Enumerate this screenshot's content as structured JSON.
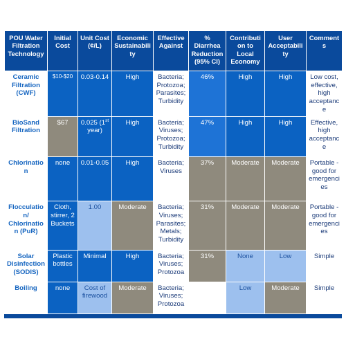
{
  "table": {
    "headers": [
      "POU Water Filtration Technology",
      "Initial Cost",
      "Unit Cost (¢/L)",
      "Economic Sustainability",
      "Effective Against",
      "% Diarrhea Reduction (95% CI)",
      "Contribution to Local Economy",
      "User Acceptability",
      "Comments"
    ],
    "rows": [
      {
        "technology": "Ceramic Filtration (CWF)",
        "initial_cost": "$10-$20",
        "unit_cost": "0.03-0.14",
        "unit_cost_sup": "",
        "unit_cost_tail": "",
        "economic_sustainability": "High",
        "effective_against": "Bacteria; Protozoa; Parasites; Turbidity",
        "diarrhea_reduction": "46%",
        "local_economy": "High",
        "user_acceptability": "High",
        "comments": "Low cost, effective, high acceptance"
      },
      {
        "technology": "BioSand Filtration",
        "initial_cost": "$67",
        "unit_cost": "0.025 (1",
        "unit_cost_sup": "st",
        "unit_cost_tail": " year)",
        "economic_sustainability": "High",
        "effective_against": "Bacteria; Viruses; Protozoa; Turbidity",
        "diarrhea_reduction": "47%",
        "local_economy": "High",
        "user_acceptability": "High",
        "comments": "Effective, high acceptance"
      },
      {
        "technology": "Chlorination",
        "initial_cost": "none",
        "unit_cost": "0.01-0.05",
        "unit_cost_sup": "",
        "unit_cost_tail": "",
        "economic_sustainability": "High",
        "effective_against": "Bacteria; Viruses",
        "diarrhea_reduction": "37%",
        "local_economy": "Moderate",
        "user_acceptability": "Moderate",
        "comments": "Portable - good for emergencies"
      },
      {
        "technology": "Flocculation/ Chlorination (PuR)",
        "initial_cost": "Cloth, stirrer, 2 Buckets",
        "unit_cost": "1.00",
        "unit_cost_sup": "",
        "unit_cost_tail": "",
        "economic_sustainability": "Moderate",
        "effective_against": "Bacteria; Viruses; Parasites; Metals; Turbidity",
        "diarrhea_reduction": "31%",
        "local_economy": "Moderate",
        "user_acceptability": "Moderate",
        "comments": "Portable - good for emergencies"
      },
      {
        "technology": "Solar Disinfection (SODIS)",
        "initial_cost": "Plastic bottles",
        "unit_cost": "Minimal",
        "unit_cost_sup": "",
        "unit_cost_tail": "",
        "economic_sustainability": "High",
        "effective_against": "Bacteria; Viruses; Protozoa",
        "diarrhea_reduction": "31%",
        "local_economy": "None",
        "user_acceptability": "Low",
        "comments": "Simple"
      },
      {
        "technology": "Boiling",
        "initial_cost": "none",
        "unit_cost": "Cost of firewood",
        "unit_cost_sup": "",
        "unit_cost_tail": "",
        "economic_sustainability": "Moderate",
        "effective_against": "Bacteria; Viruses; Protozoa",
        "diarrhea_reduction": "",
        "local_economy": "Low",
        "user_acceptability": "Moderate",
        "comments": "Simple"
      }
    ]
  },
  "colors": {
    "header": "#0a4a9c",
    "dark_blue": "#0b62c2",
    "mid_blue": "#1e73d6",
    "light_blue": "#9dc0ee",
    "gray": "#8f8a7d",
    "row_label_text": "#1565c0"
  }
}
